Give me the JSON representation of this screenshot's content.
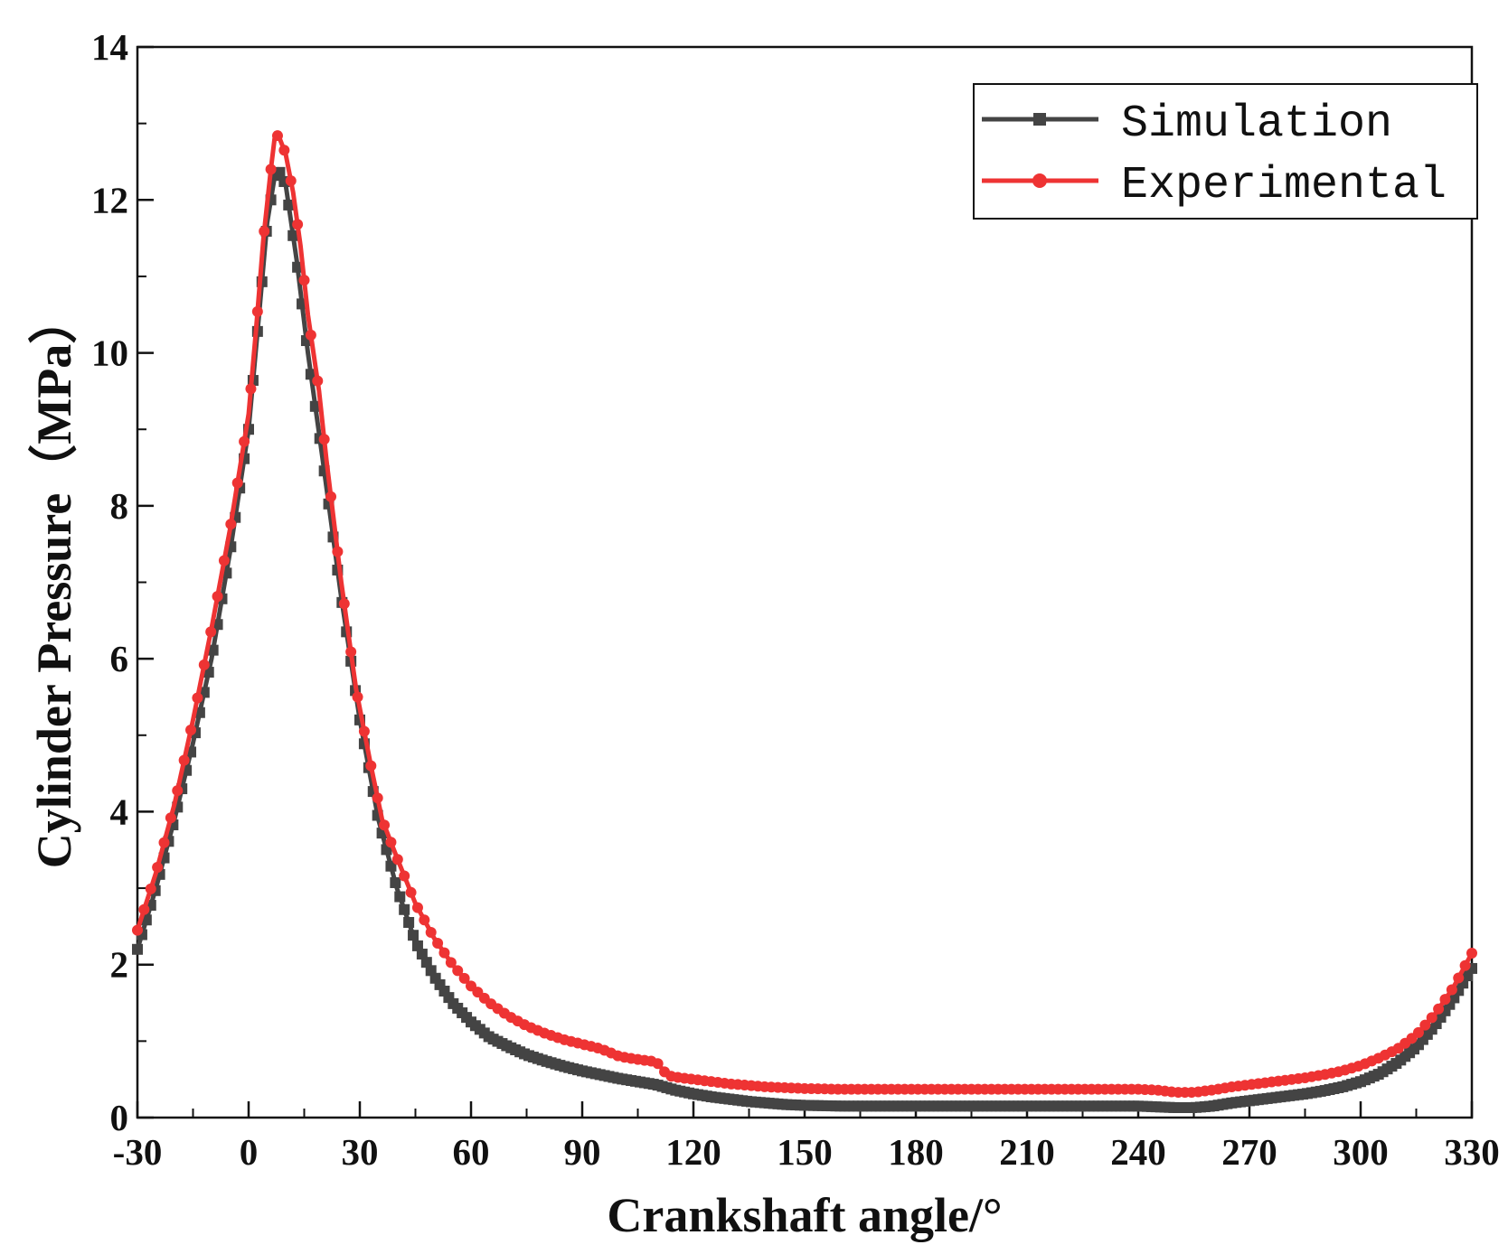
{
  "chart_data": {
    "type": "line",
    "title": "",
    "xlabel": "Crankshaft angle/°",
    "ylabel": "Cylinder Pressure（MPa）",
    "xlim": [
      -30,
      330
    ],
    "ylim": [
      0,
      14
    ],
    "x_ticks": [
      "-30",
      "0",
      "30",
      "60",
      "90",
      "120",
      "150",
      "180",
      "210",
      "240",
      "270",
      "300",
      "330"
    ],
    "y_ticks": [
      "0",
      "2",
      "4",
      "6",
      "8",
      "10",
      "12",
      "14"
    ],
    "legend_position": "top-right",
    "grid": false,
    "series": [
      {
        "name": "Simulation",
        "color": "#444444",
        "marker": "square",
        "points": [
          [
            -30,
            2.2
          ],
          [
            -25,
            3.0
          ],
          [
            -20,
            3.9
          ],
          [
            -15,
            4.9
          ],
          [
            -10,
            6.0
          ],
          [
            -5,
            7.4
          ],
          [
            0,
            9.0
          ],
          [
            3,
            10.6
          ],
          [
            5,
            11.7
          ],
          [
            7,
            12.3
          ],
          [
            8,
            12.4
          ],
          [
            10,
            12.2
          ],
          [
            13,
            11.2
          ],
          [
            16,
            10.0
          ],
          [
            20,
            8.6
          ],
          [
            25,
            6.8
          ],
          [
            30,
            5.2
          ],
          [
            35,
            3.9
          ],
          [
            40,
            3.0
          ],
          [
            45,
            2.3
          ],
          [
            50,
            1.85
          ],
          [
            55,
            1.5
          ],
          [
            60,
            1.25
          ],
          [
            65,
            1.05
          ],
          [
            70,
            0.93
          ],
          [
            75,
            0.82
          ],
          [
            80,
            0.74
          ],
          [
            85,
            0.67
          ],
          [
            90,
            0.61
          ],
          [
            95,
            0.56
          ],
          [
            100,
            0.51
          ],
          [
            105,
            0.47
          ],
          [
            110,
            0.43
          ],
          [
            115,
            0.36
          ],
          [
            120,
            0.31
          ],
          [
            125,
            0.27
          ],
          [
            130,
            0.24
          ],
          [
            135,
            0.21
          ],
          [
            140,
            0.19
          ],
          [
            145,
            0.17
          ],
          [
            150,
            0.16
          ],
          [
            160,
            0.15
          ],
          [
            180,
            0.15
          ],
          [
            200,
            0.15
          ],
          [
            220,
            0.15
          ],
          [
            240,
            0.15
          ],
          [
            250,
            0.13
          ],
          [
            255,
            0.13
          ],
          [
            260,
            0.15
          ],
          [
            265,
            0.19
          ],
          [
            270,
            0.22
          ],
          [
            275,
            0.25
          ],
          [
            280,
            0.28
          ],
          [
            285,
            0.31
          ],
          [
            290,
            0.35
          ],
          [
            295,
            0.4
          ],
          [
            300,
            0.47
          ],
          [
            305,
            0.57
          ],
          [
            310,
            0.72
          ],
          [
            315,
            0.92
          ],
          [
            320,
            1.2
          ],
          [
            325,
            1.55
          ],
          [
            330,
            1.95
          ]
        ]
      },
      {
        "name": "Experimental",
        "color": "#ee3333",
        "marker": "circle",
        "points": [
          [
            -30,
            2.45
          ],
          [
            -25,
            3.2
          ],
          [
            -20,
            4.1
          ],
          [
            -15,
            5.2
          ],
          [
            -10,
            6.4
          ],
          [
            -5,
            7.7
          ],
          [
            -2,
            8.6
          ],
          [
            0,
            9.2
          ],
          [
            2,
            10.3
          ],
          [
            4,
            11.5
          ],
          [
            6,
            12.4
          ],
          [
            7,
            12.8
          ],
          [
            8,
            12.85
          ],
          [
            10,
            12.6
          ],
          [
            12,
            12.1
          ],
          [
            14,
            11.4
          ],
          [
            16,
            10.5
          ],
          [
            19,
            9.5
          ],
          [
            21,
            8.6
          ],
          [
            23,
            7.8
          ],
          [
            25,
            7.0
          ],
          [
            27,
            6.3
          ],
          [
            29,
            5.6
          ],
          [
            31,
            5.1
          ],
          [
            33,
            4.6
          ],
          [
            36,
            3.9
          ],
          [
            40,
            3.4
          ],
          [
            45,
            2.8
          ],
          [
            50,
            2.35
          ],
          [
            55,
            2.0
          ],
          [
            60,
            1.72
          ],
          [
            65,
            1.5
          ],
          [
            70,
            1.33
          ],
          [
            75,
            1.2
          ],
          [
            80,
            1.1
          ],
          [
            85,
            1.02
          ],
          [
            90,
            0.96
          ],
          [
            95,
            0.9
          ],
          [
            100,
            0.8
          ],
          [
            105,
            0.76
          ],
          [
            110,
            0.73
          ],
          [
            113,
            0.55
          ],
          [
            115,
            0.53
          ],
          [
            120,
            0.5
          ],
          [
            125,
            0.47
          ],
          [
            130,
            0.44
          ],
          [
            135,
            0.42
          ],
          [
            140,
            0.4
          ],
          [
            145,
            0.39
          ],
          [
            150,
            0.38
          ],
          [
            160,
            0.37
          ],
          [
            180,
            0.37
          ],
          [
            200,
            0.37
          ],
          [
            220,
            0.37
          ],
          [
            240,
            0.37
          ],
          [
            245,
            0.36
          ],
          [
            250,
            0.33
          ],
          [
            255,
            0.33
          ],
          [
            260,
            0.36
          ],
          [
            265,
            0.4
          ],
          [
            270,
            0.43
          ],
          [
            275,
            0.46
          ],
          [
            280,
            0.49
          ],
          [
            285,
            0.52
          ],
          [
            290,
            0.56
          ],
          [
            295,
            0.61
          ],
          [
            300,
            0.68
          ],
          [
            305,
            0.78
          ],
          [
            310,
            0.9
          ],
          [
            315,
            1.08
          ],
          [
            320,
            1.35
          ],
          [
            325,
            1.7
          ],
          [
            330,
            2.15
          ]
        ]
      }
    ]
  }
}
